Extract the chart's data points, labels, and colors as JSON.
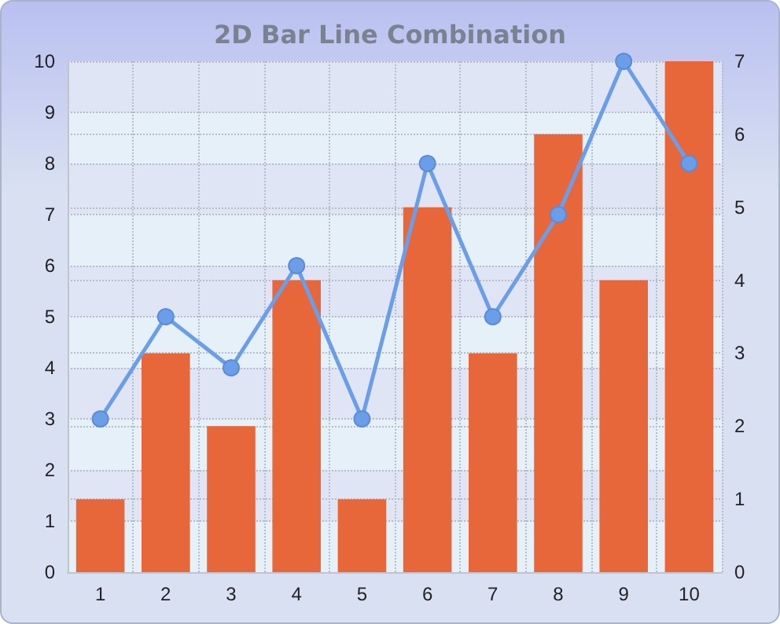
{
  "chart_data": {
    "type": "bar",
    "title": "2D Bar Line Combination",
    "categories": [
      "1",
      "2",
      "3",
      "4",
      "5",
      "6",
      "7",
      "8",
      "9",
      "10"
    ],
    "series": [
      {
        "axis": "y2",
        "color": "#e8673a",
        "values": [
          1,
          3,
          2,
          4,
          1,
          5,
          3,
          6,
          4,
          7
        ]
      },
      {
        "type": "line",
        "axis": "y",
        "color": "#6a9ee8",
        "marker": "circle",
        "values": [
          3,
          5,
          4,
          6,
          3,
          8,
          5,
          7,
          10,
          8
        ]
      }
    ],
    "ylim": [
      0,
      10
    ],
    "yticks": [
      0,
      1,
      2,
      3,
      4,
      5,
      6,
      7,
      8,
      9,
      10
    ],
    "y2lim": [
      0,
      7
    ],
    "y2ticks": [
      0,
      1,
      2,
      3,
      4,
      5,
      6,
      7
    ],
    "grid": true
  }
}
